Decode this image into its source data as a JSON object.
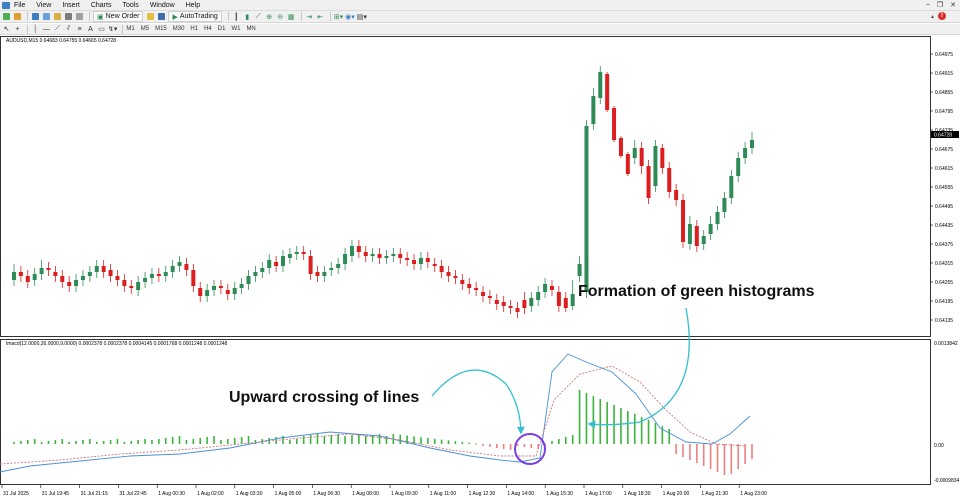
{
  "menu": {
    "items": [
      "File",
      "View",
      "Insert",
      "Charts",
      "Tools",
      "Window",
      "Help"
    ]
  },
  "toolbar": {
    "new_order_label": "New Order",
    "autotrading_label": "AutoTrading",
    "autotrading_badge": "!",
    "timeframes": [
      "M1",
      "M5",
      "M15",
      "M30",
      "H1",
      "H4",
      "D1",
      "W1",
      "MN"
    ]
  },
  "chart": {
    "price_info": "AUDUSD,M15  0.64683 0.64755 0.64665 0.64728",
    "indicator_info": "tmacd(12.0000,26.0000,9.0000)  0.0002378 0.0002378 0.0004145 0.0001768 0.0001248 0.0001248",
    "price_ticks": [
      "0.64975",
      "0.64915",
      "0.64855",
      "0.64795",
      "0.64735",
      "0.64675",
      "0.64615",
      "0.64555",
      "0.64495",
      "0.64435",
      "0.64375",
      "0.64315",
      "0.64255",
      "0.64195",
      "0.64135"
    ],
    "current_price": "0.64728",
    "indicator_ticks": [
      "0.0013842",
      "0.00",
      "-0.0009834"
    ],
    "time_labels": [
      "31 Jul 2025",
      "31 Jul 19:45",
      "31 Jul 21:15",
      "31 Jul 22:45",
      "1 Aug 00:30",
      "1 Aug 02:00",
      "1 Aug 03:30",
      "1 Aug 05:00",
      "1 Aug 06:30",
      "1 Aug 08:00",
      "1 Aug 09:30",
      "1 Aug 11:00",
      "1 Aug 12:30",
      "1 Aug 14:00",
      "1 Aug 15:30",
      "1 Aug 17:00",
      "1 Aug 18:30",
      "1 Aug 20:00",
      "1 Aug 21:30",
      "1 Aug 23:00"
    ],
    "colors": {
      "bull": "#2e8b57",
      "bear": "#dc1e1e",
      "hist_pos": "#3cb43c",
      "hist_neg": "#f08080",
      "line_blue": "#4a90d9",
      "line_signal": "#c87878",
      "circle": "#7b3fe4",
      "arrow": "#33c0d0"
    }
  },
  "annotations": {
    "green_histograms": "Formation of green histograms",
    "upward_crossing": "Upward crossing of lines"
  }
}
